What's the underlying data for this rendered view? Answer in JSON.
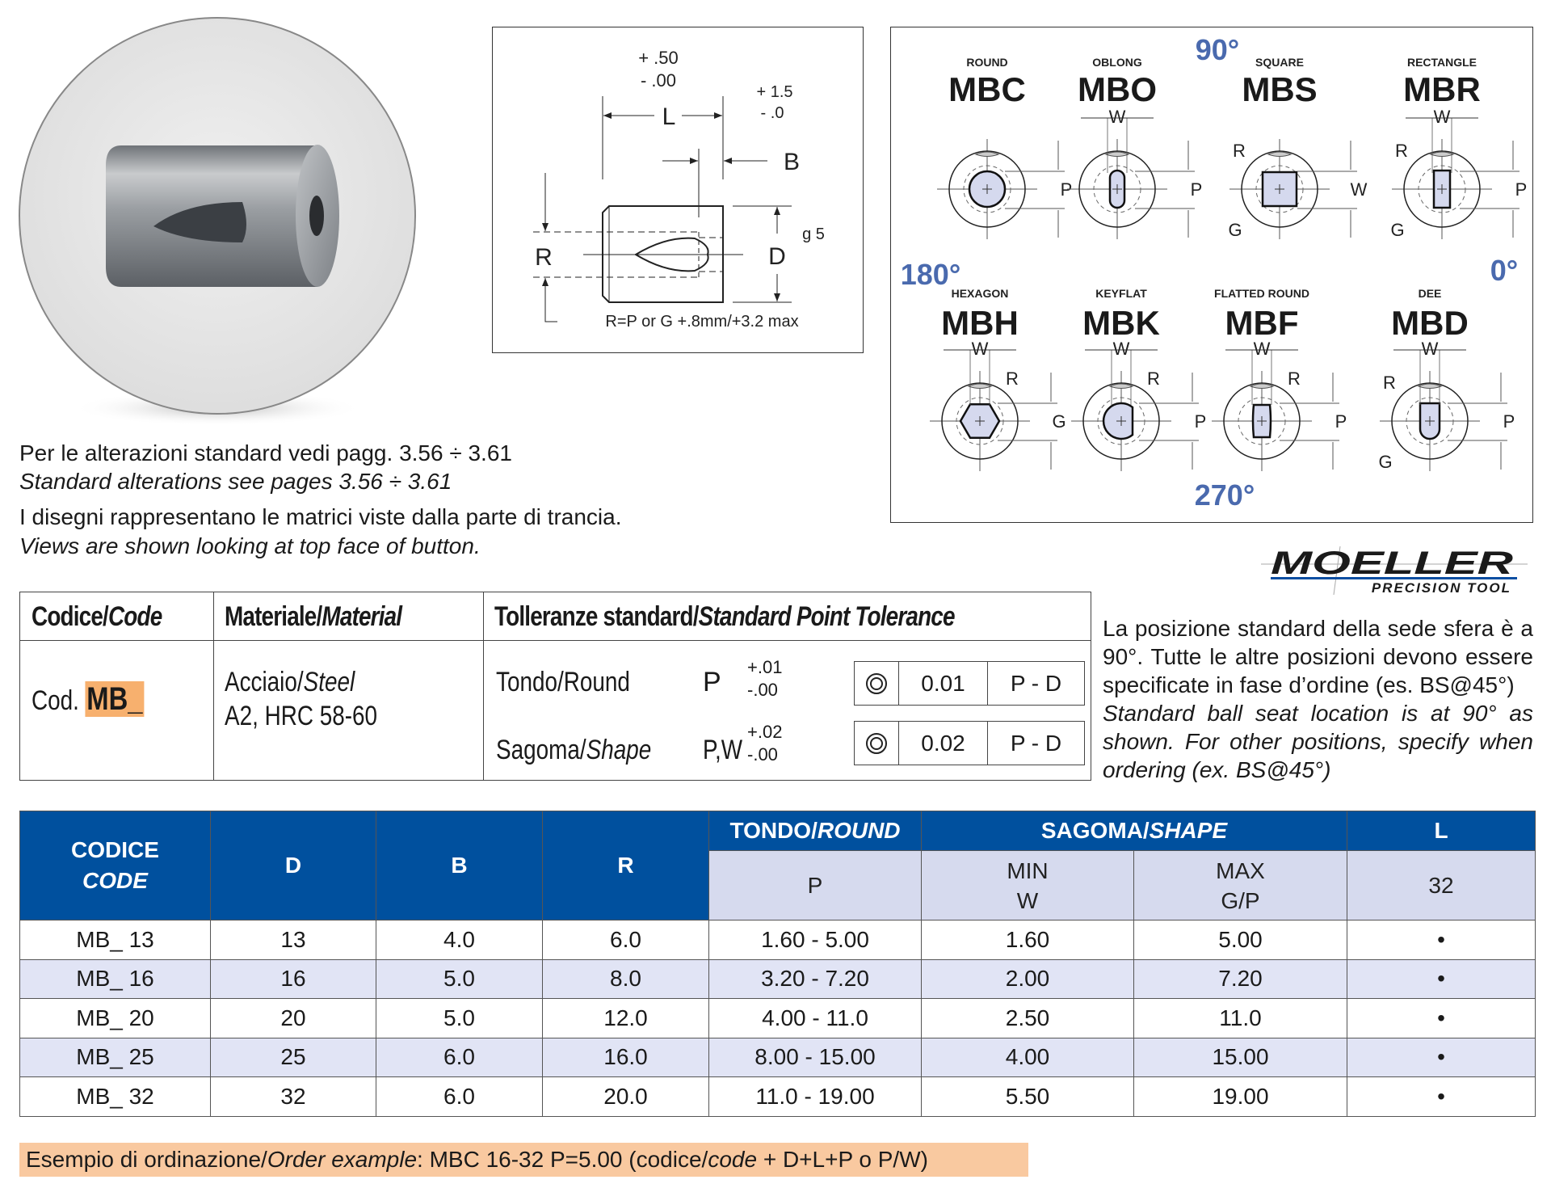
{
  "drawing": {
    "l_tol_plus": "+ .50",
    "l_tol_minus": "-  .00",
    "l_label": "L",
    "b_tol_plus": "+ 1.5",
    "b_tol_minus": "- .0",
    "b_label": "B",
    "r_label": "R",
    "d_label": "D",
    "d_fit": "g 5",
    "footnote": "R=P or G +.8mm/+3.2 max"
  },
  "shapes_panel": {
    "angles": {
      "top": "90°",
      "left": "180°",
      "right": "0°",
      "bottom": "270°"
    },
    "shapes": [
      {
        "type": "ROUND",
        "code": "MBC",
        "dims": [
          "P"
        ]
      },
      {
        "type": "OBLONG",
        "code": "MBO",
        "dims": [
          "W",
          "P"
        ]
      },
      {
        "type": "SQUARE",
        "code": "MBS",
        "dims": [
          "R",
          "W",
          "G"
        ]
      },
      {
        "type": "RECTANGLE",
        "code": "MBR",
        "dims": [
          "W",
          "R",
          "P",
          "G"
        ]
      },
      {
        "type": "HEXAGON",
        "code": "MBH",
        "dims": [
          "W",
          "R",
          "G"
        ]
      },
      {
        "type": "KEYFLAT",
        "code": "MBK",
        "dims": [
          "W",
          "R",
          "P"
        ]
      },
      {
        "type": "FLATTED ROUND",
        "code": "MBF",
        "dims": [
          "W",
          "R",
          "P"
        ]
      },
      {
        "type": "DEE",
        "code": "MBD",
        "dims": [
          "W",
          "R",
          "P",
          "G"
        ]
      }
    ],
    "accent_color": "#4a6aae"
  },
  "notes": {
    "line1": "Per le alterazioni standard vedi pagg. 3.56 ÷ 3.61",
    "line2": "Standard alterations see pages 3.56 ÷ 3.61",
    "line3": "I disegni rappresentano le matrici viste dalla parte di trancia.",
    "line4": "Views are shown looking at top face of button."
  },
  "logo": {
    "name": "MOELLER",
    "tagline": "PRECISION TOOL"
  },
  "tolerance_table": {
    "headers": {
      "code_it": "Codice/",
      "code_en": "Code",
      "material_it": "Materiale/",
      "material_en": "Material",
      "tol_it": "Tolleranze standard/",
      "tol_en": "Standard Point Tolerance"
    },
    "code_prefix": "Cod.",
    "code_value": "MB_",
    "material_it": "Acciaio/",
    "material_en": "Steel",
    "material_grade": "A2,  HRC 58-60",
    "rows": [
      {
        "label_it": "Tondo/Round",
        "label_en": "",
        "symbol": "P",
        "plus": "+.01",
        "minus": "-.00",
        "value": "0.01",
        "ref": "P - D"
      },
      {
        "label_it": "Sagoma/",
        "label_en": "Shape",
        "symbol": "P,W",
        "plus": "+.02",
        "minus": "-.00",
        "value": "0.02",
        "ref": "P - D"
      }
    ],
    "concentricity_icon": "concentricity-icon"
  },
  "right_note": {
    "it": "La posizione standard della sede sfera è a 90°. Tutte le altre posizioni devono essere specificate in fase d’ordine (es. BS@45°)",
    "en": "Standard ball seat location is at 90° as shown. For other positions, specify when ordering (ex. BS@45°)"
  },
  "main_table": {
    "headers": {
      "code_it": "CODICE",
      "code_en": "CODE",
      "d": "D",
      "b": "B",
      "r": "R",
      "round_it": "TONDO/",
      "round_en": "ROUND",
      "shape_it": "SAGOMA/",
      "shape_en": "SHAPE",
      "l": "L",
      "p": "P",
      "min": "MIN",
      "w": "W",
      "max": "MAX",
      "gp": "G/P",
      "l_value": "32"
    },
    "rows": [
      {
        "code": "MB_ 13",
        "d": "13",
        "b": "4.0",
        "r": "6.0",
        "p": "1.60 - 5.00",
        "min_w": "1.60",
        "max_gp": "5.00",
        "l32": "•"
      },
      {
        "code": "MB_ 16",
        "d": "16",
        "b": "5.0",
        "r": "8.0",
        "p": "3.20 - 7.20",
        "min_w": "2.00",
        "max_gp": "7.20",
        "l32": "•"
      },
      {
        "code": "MB_ 20",
        "d": "20",
        "b": "5.0",
        "r": "12.0",
        "p": "4.00 - 11.0",
        "min_w": "2.50",
        "max_gp": "11.0",
        "l32": "•"
      },
      {
        "code": "MB_ 25",
        "d": "25",
        "b": "6.0",
        "r": "16.0",
        "p": "8.00 - 15.00",
        "min_w": "4.00",
        "max_gp": "15.00",
        "l32": "•"
      },
      {
        "code": "MB_ 32",
        "d": "32",
        "b": "6.0",
        "r": "20.0",
        "p": "11.0 - 19.00",
        "min_w": "5.50",
        "max_gp": "19.00",
        "l32": "•"
      }
    ],
    "header_color": "#00509e",
    "subheader_color": "#d6daee",
    "alt_row_color": "#e1e4f5"
  },
  "order_example": {
    "it": "Esempio di ordinazione/",
    "en": "Order example",
    "text": ": MBC 16-32 P=5.00 (codice/",
    "code_en": "code",
    "tail": " + D+L+P o P/W)",
    "highlight_color": "#f9c9a0"
  }
}
